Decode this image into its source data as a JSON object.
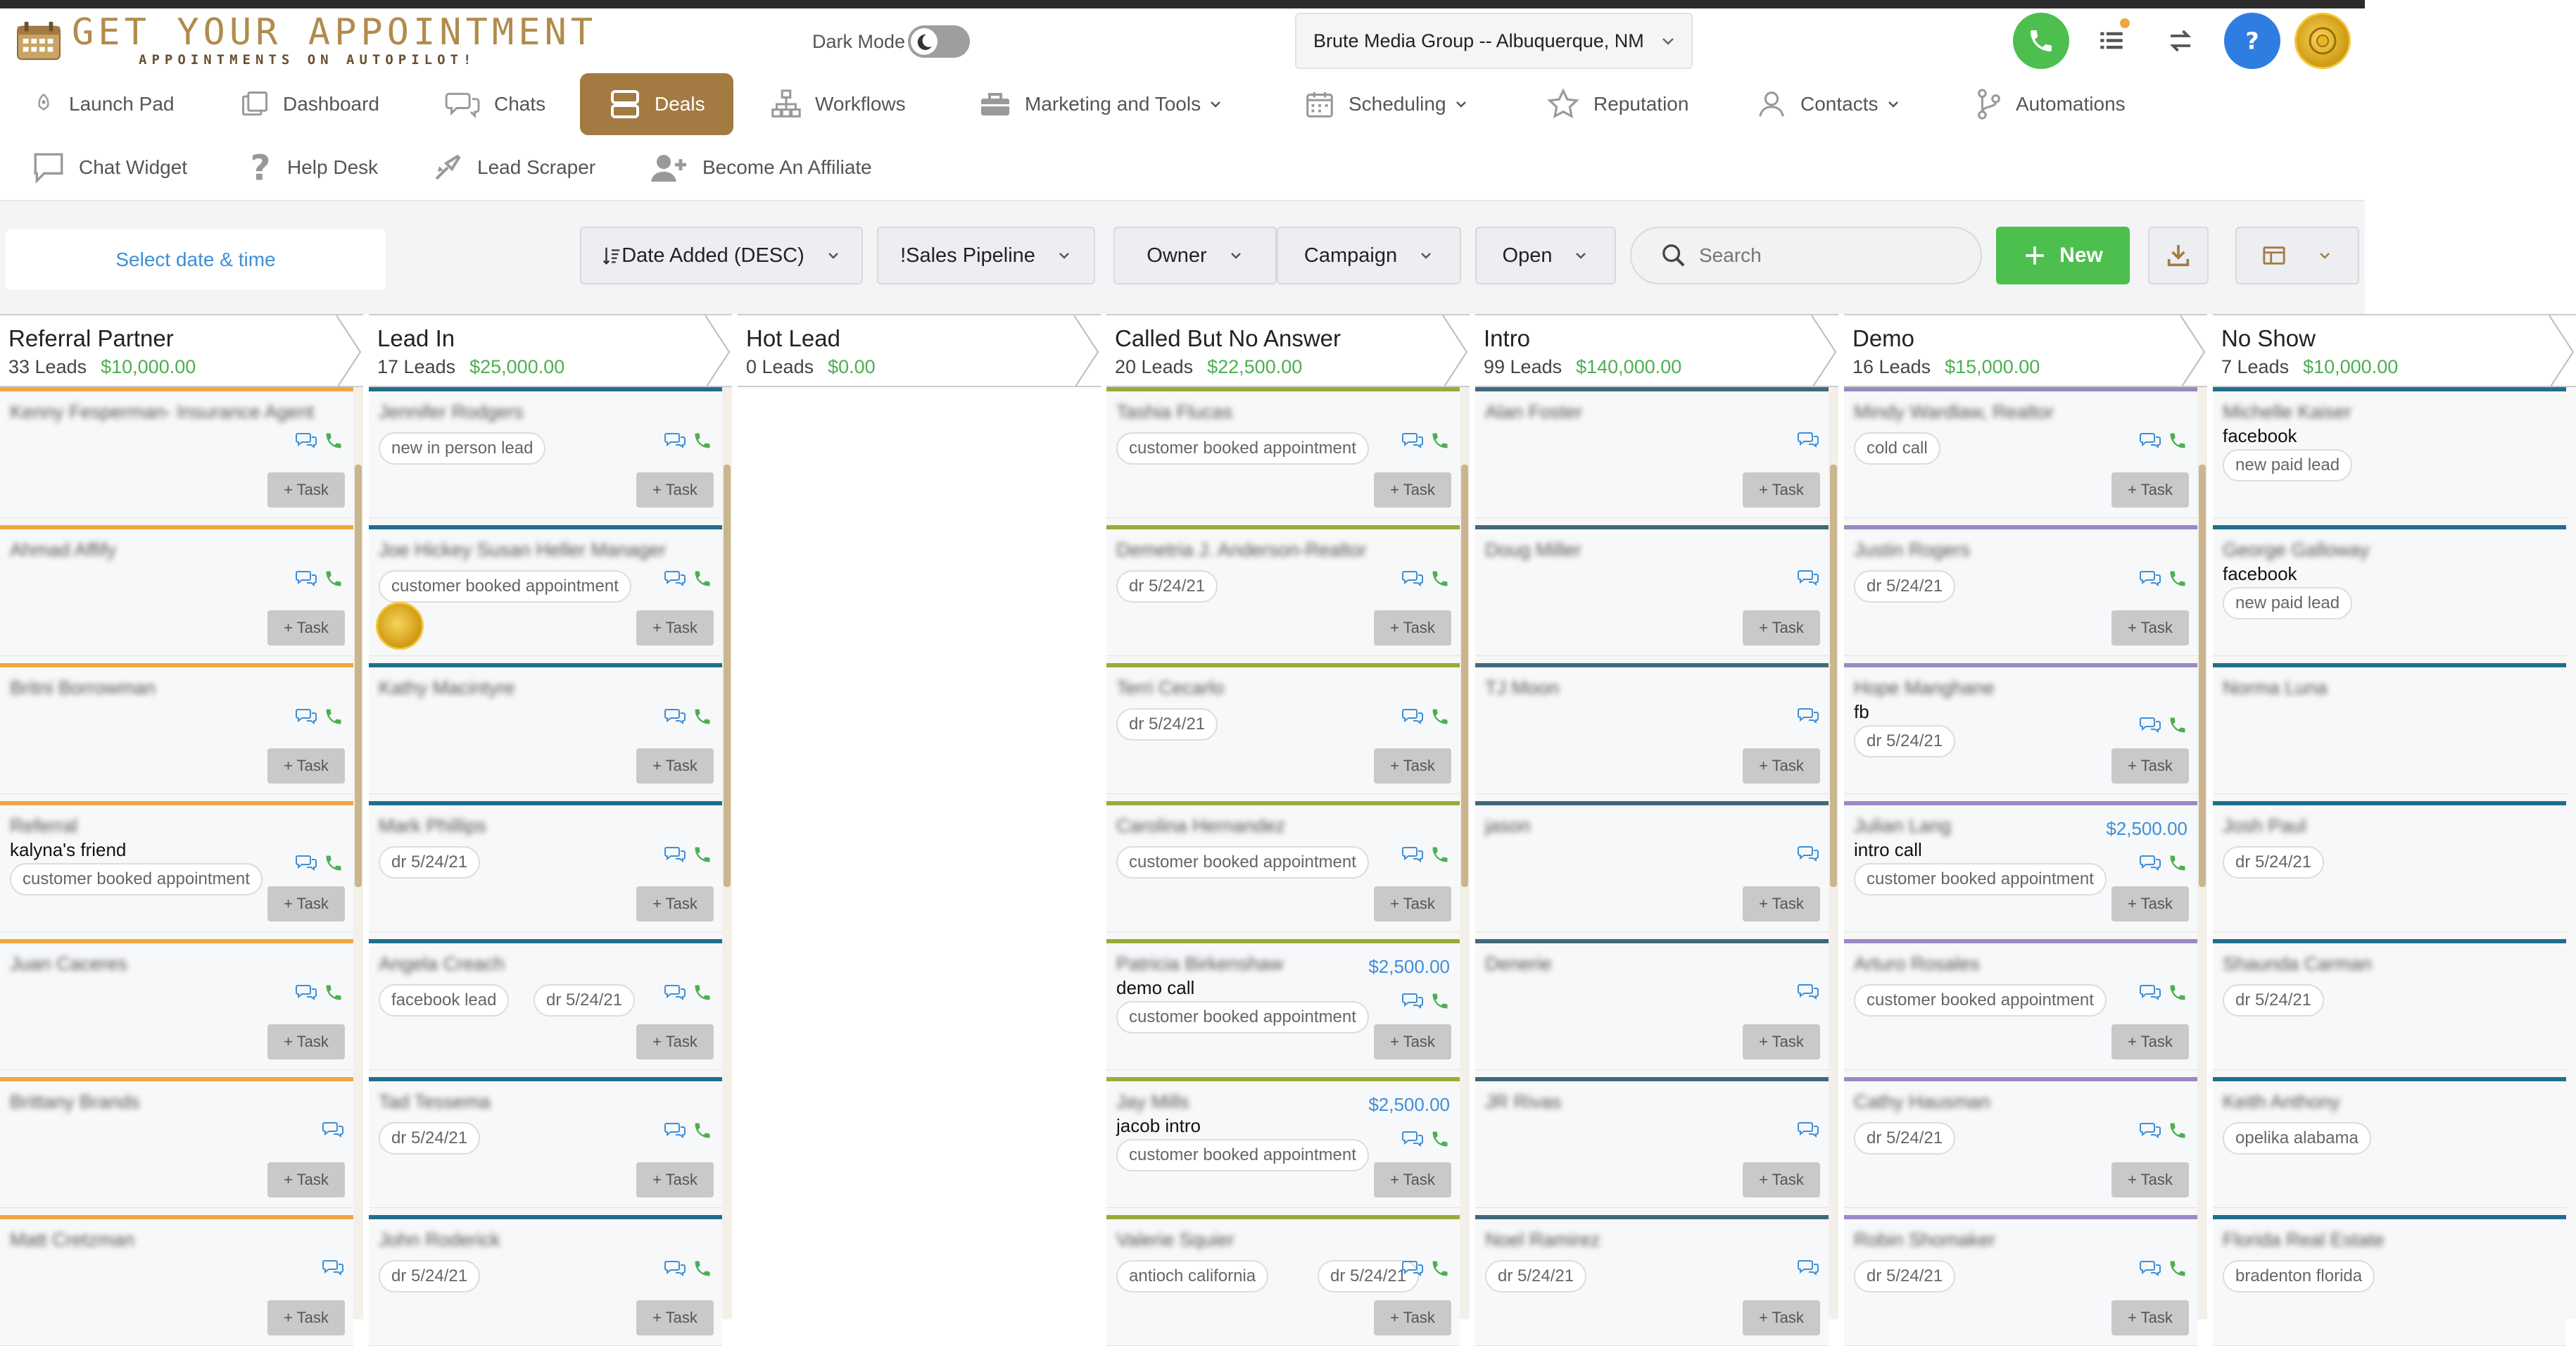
{
  "brand": {
    "title": "GET YOUR APPOINTMENT",
    "tagline": "APPOINTMENTS ON AUTOPILOT!"
  },
  "header": {
    "dark_mode_label": "Dark Mode",
    "location": "Brute Media Group -- Albuquerque, NM",
    "dark_mode_on": false
  },
  "nav": {
    "row1": [
      "Launch Pad",
      "Dashboard",
      "Chats",
      "Deals",
      "Workflows",
      "Marketing and Tools",
      "Scheduling",
      "Reputation",
      "Contacts",
      "Automations"
    ],
    "row2": [
      "Chat Widget",
      "Help Desk",
      "Lead Scraper",
      "Become An Affiliate"
    ],
    "active": "Deals"
  },
  "filters": {
    "date_picker": "Select date & time",
    "sort": "Date Added (DESC)",
    "pipeline": "!Sales Pipeline",
    "owner": "Owner",
    "campaign": "Campaign",
    "status": "Open",
    "search_placeholder": "Search",
    "new_label": "New"
  },
  "colors": {
    "accent": "#a37b42",
    "green": "#4dbf4f",
    "blue": "#3d8fd8",
    "orange": "#f0a640",
    "teal": "#1e6f8f",
    "olive": "#9aab36",
    "slate": "#3f6a7a",
    "purple": "#9c88c4"
  },
  "columns": [
    {
      "title": "Referral Partner",
      "count": "33 Leads",
      "amount": "$10,000.00",
      "color": "#f0a640",
      "cards": [
        {
          "name": "Kenny Fesperman- Insurance Agent",
          "note": "",
          "tags": [],
          "value": "",
          "icons": [
            "chat",
            "phone"
          ]
        },
        {
          "name": "Ahmad Affify",
          "note": "",
          "tags": [],
          "value": "",
          "icons": [
            "chat",
            "phone"
          ]
        },
        {
          "name": "Britni Borrowman",
          "note": "",
          "tags": [],
          "value": "",
          "icons": [
            "chat",
            "phone"
          ]
        },
        {
          "name": "Referral",
          "note": "kalyna's friend",
          "tags": [
            "customer booked appointment"
          ],
          "value": "",
          "icons": [
            "chat",
            "phone"
          ]
        },
        {
          "name": "Juan Caceres",
          "note": "",
          "tags": [],
          "value": "",
          "icons": [
            "chat",
            "phone"
          ]
        },
        {
          "name": "Brittany Brands",
          "note": "",
          "tags": [],
          "value": "",
          "icons": [
            "chat"
          ]
        },
        {
          "name": "Matt Cretzman",
          "note": "",
          "tags": [],
          "value": "",
          "icons": [
            "chat"
          ]
        }
      ]
    },
    {
      "title": "Lead In",
      "count": "17 Leads",
      "amount": "$25,000.00",
      "color": "#1e6f8f",
      "cards": [
        {
          "name": "Jennifer Rodgers",
          "note": "",
          "tags": [
            "new in person lead"
          ],
          "value": "",
          "icons": [
            "chat",
            "phone"
          ]
        },
        {
          "name": "Joe Hickey Susan Heller Manager",
          "note": "",
          "tags": [
            "customer booked appointment"
          ],
          "value": "",
          "icons": [
            "chat",
            "phone"
          ],
          "avatar": true
        },
        {
          "name": "Kathy Macintyre",
          "note": "",
          "tags": [],
          "value": "",
          "icons": [
            "chat",
            "phone"
          ]
        },
        {
          "name": "Mark Phillips",
          "note": "",
          "tags": [
            "dr 5/24/21"
          ],
          "value": "",
          "icons": [
            "chat",
            "phone"
          ]
        },
        {
          "name": "Angela Creach",
          "note": "",
          "tags": [
            "facebook lead",
            "dr 5/24/21"
          ],
          "value": "",
          "icons": [
            "chat",
            "phone"
          ]
        },
        {
          "name": "Tad Tessema",
          "note": "",
          "tags": [
            "dr 5/24/21"
          ],
          "value": "",
          "icons": [
            "chat",
            "phone"
          ]
        },
        {
          "name": "John Roderick",
          "note": "",
          "tags": [
            "dr 5/24/21"
          ],
          "value": "",
          "icons": [
            "chat",
            "phone"
          ]
        }
      ]
    },
    {
      "title": "Hot Lead",
      "count": "0 Leads",
      "amount": "$0.00",
      "color": "#cccccc",
      "cards": []
    },
    {
      "title": "Called But No Answer",
      "count": "20 Leads",
      "amount": "$22,500.00",
      "color": "#9aab36",
      "cards": [
        {
          "name": "Tashia Flucas",
          "note": "",
          "tags": [
            "customer booked appointment"
          ],
          "value": "",
          "icons": [
            "chat",
            "phone"
          ]
        },
        {
          "name": "Demetria J. Anderson-Realtor",
          "note": "",
          "tags": [
            "dr 5/24/21"
          ],
          "value": "",
          "icons": [
            "chat",
            "phone"
          ]
        },
        {
          "name": "Terri Cecarlo",
          "note": "",
          "tags": [
            "dr 5/24/21"
          ],
          "value": "",
          "icons": [
            "chat",
            "phone"
          ]
        },
        {
          "name": "Carolina Hernandez",
          "note": "",
          "tags": [
            "customer booked appointment"
          ],
          "value": "",
          "icons": [
            "chat",
            "phone"
          ]
        },
        {
          "name": "Patricia Birkenshaw",
          "note": "demo call",
          "tags": [
            "customer booked appointment"
          ],
          "value": "$2,500.00",
          "icons": [
            "chat",
            "phone"
          ]
        },
        {
          "name": "Jay Mills",
          "note": "jacob intro",
          "tags": [
            "customer booked appointment"
          ],
          "value": "$2,500.00",
          "icons": [
            "chat",
            "phone"
          ]
        },
        {
          "name": "Valerie Squier",
          "note": "",
          "tags": [
            "antioch california",
            "dr 5/24/21"
          ],
          "value": "",
          "icons": [
            "chat",
            "phone"
          ]
        }
      ]
    },
    {
      "title": "Intro",
      "count": "99 Leads",
      "amount": "$140,000.00",
      "color": "#3f6a7a",
      "cards": [
        {
          "name": "Alan Foster",
          "note": "",
          "tags": [],
          "value": "",
          "icons": [
            "chat"
          ]
        },
        {
          "name": "Doug Miller",
          "note": "",
          "tags": [],
          "value": "",
          "icons": [
            "chat"
          ]
        },
        {
          "name": "TJ Moon",
          "note": "",
          "tags": [],
          "value": "",
          "icons": [
            "chat"
          ]
        },
        {
          "name": "jason",
          "note": "",
          "tags": [],
          "value": "",
          "icons": [
            "chat"
          ]
        },
        {
          "name": "Denerie",
          "note": "",
          "tags": [],
          "value": "",
          "icons": [
            "chat"
          ]
        },
        {
          "name": "JR Rivas",
          "note": "",
          "tags": [],
          "value": "",
          "icons": [
            "chat"
          ]
        },
        {
          "name": "Noel Ramirez",
          "note": "",
          "tags": [
            "dr 5/24/21"
          ],
          "value": "",
          "icons": [
            "chat"
          ]
        }
      ]
    },
    {
      "title": "Demo",
      "count": "16 Leads",
      "amount": "$15,000.00",
      "color": "#9c88c4",
      "cards": [
        {
          "name": "Mindy Wardlaw, Realtor",
          "note": "",
          "tags": [
            "cold call"
          ],
          "value": "",
          "icons": [
            "chat",
            "phone"
          ]
        },
        {
          "name": "Justin Rogers",
          "note": "",
          "tags": [
            "dr 5/24/21"
          ],
          "value": "",
          "icons": [
            "chat",
            "phone"
          ]
        },
        {
          "name": "Hope Manghane",
          "note": "fb",
          "tags": [
            "dr 5/24/21"
          ],
          "value": "",
          "icons": [
            "chat",
            "phone"
          ]
        },
        {
          "name": "Julian Lang",
          "note": "intro call",
          "tags": [
            "customer booked appointment"
          ],
          "value": "$2,500.00",
          "icons": [
            "chat",
            "phone"
          ]
        },
        {
          "name": "Arturo Rosales",
          "note": "",
          "tags": [
            "customer booked appointment"
          ],
          "value": "",
          "icons": [
            "chat",
            "phone"
          ]
        },
        {
          "name": "Cathy Hausman",
          "note": "",
          "tags": [
            "dr 5/24/21"
          ],
          "value": "",
          "icons": [
            "chat",
            "phone"
          ]
        },
        {
          "name": "Robin Shomaker",
          "note": "",
          "tags": [
            "dr 5/24/21"
          ],
          "value": "",
          "icons": [
            "chat",
            "phone"
          ]
        }
      ]
    },
    {
      "title": "No Show",
      "count": "7 Leads",
      "amount": "$10,000.00",
      "color": "#1e6f8f",
      "cards": [
        {
          "name": "Michelle Kaiser",
          "note": "facebook",
          "tags": [
            "new paid lead"
          ],
          "value": "",
          "icons": []
        },
        {
          "name": "George Galloway",
          "note": "facebook",
          "tags": [
            "new paid lead"
          ],
          "value": "",
          "icons": []
        },
        {
          "name": "Norma Luna",
          "note": "",
          "tags": [],
          "value": "",
          "icons": []
        },
        {
          "name": "Josh Paul",
          "note": "",
          "tags": [
            "dr 5/24/21"
          ],
          "value": "",
          "icons": []
        },
        {
          "name": "Shaunda Carman",
          "note": "",
          "tags": [
            "dr 5/24/21"
          ],
          "value": "",
          "icons": []
        },
        {
          "name": "Keith Anthony",
          "note": "",
          "tags": [
            "opelika alabama"
          ],
          "value": "",
          "icons": []
        },
        {
          "name": "Florida Real Estate",
          "note": "",
          "tags": [
            "bradenton florida"
          ],
          "value": "",
          "icons": []
        }
      ]
    }
  ],
  "task_label": "+ Task"
}
